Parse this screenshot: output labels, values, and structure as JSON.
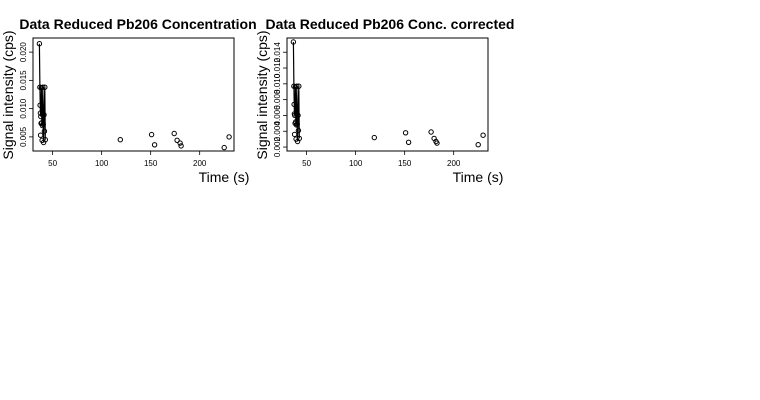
{
  "chart_data": [
    {
      "type": "scatter",
      "title": "Data Reduced Pb206 Concentration",
      "xlabel": "Time (s)",
      "ylabel": "Signal intensity (cps)",
      "xlim": [
        30,
        235
      ],
      "ylim": [
        0.0025,
        0.0225
      ],
      "x_ticks": [
        50,
        100,
        150,
        200
      ],
      "x_tick_labels": [
        "50",
        "100",
        "150",
        "200"
      ],
      "y_ticks": [
        0.005,
        0.01,
        0.015,
        0.02
      ],
      "y_tick_labels": [
        "0.005",
        "0.010",
        "0.015",
        "0.020"
      ],
      "series": [
        {
          "x": [
            36.5,
            37.0,
            37.2,
            37.5,
            37.8,
            38.0,
            38.3,
            38.6,
            39.0,
            39.3,
            39.6,
            40.0,
            40.4,
            40.8,
            41.2,
            41.6,
            42.0,
            42.5,
            119.0,
            151.0,
            154.0,
            174.0,
            177.0,
            180.0,
            181.0,
            225.0,
            230.0
          ],
          "y": [
            0.0215,
            0.0138,
            0.0106,
            0.0092,
            0.0053,
            0.0086,
            0.0074,
            0.0137,
            0.0075,
            0.0044,
            0.007,
            0.0138,
            0.0072,
            0.004,
            0.0089,
            0.006,
            0.0138,
            0.0045,
            0.0045,
            0.0054,
            0.0036,
            0.0056,
            0.0044,
            0.0039,
            0.0034,
            0.0031,
            0.005
          ],
          "line_x": [
            36.5,
            37.0,
            37.5,
            38.0,
            38.6,
            39.0,
            39.6,
            40.0,
            40.8,
            41.2,
            42.0,
            42.5
          ],
          "line_y": [
            0.0215,
            0.0138,
            0.0092,
            0.0086,
            0.0137,
            0.0075,
            0.007,
            0.0138,
            0.004,
            0.0089,
            0.0138,
            0.0045
          ]
        }
      ],
      "grid": false,
      "legend": "none"
    },
    {
      "type": "scatter",
      "title": "Data Reduced Pb206 Conc. corrected",
      "xlabel": "Time (s)",
      "ylabel": "Signal intensity (cps)",
      "xlim": [
        30,
        235
      ],
      "ylim": [
        0.0015,
        0.0158
      ],
      "x_ticks": [
        50,
        100,
        150,
        200
      ],
      "x_tick_labels": [
        "50",
        "100",
        "150",
        "200"
      ],
      "y_ticks": [
        0.002,
        0.004,
        0.006,
        0.008,
        0.01,
        0.012,
        0.014
      ],
      "y_tick_labels": [
        "0.002",
        "0.004",
        "0.006",
        "0.008",
        "0.010",
        "0.012",
        "0.014"
      ],
      "series": [
        {
          "x": [
            36.5,
            37.0,
            37.2,
            37.5,
            37.8,
            38.0,
            38.3,
            38.6,
            39.0,
            39.3,
            39.6,
            40.0,
            40.4,
            40.8,
            41.2,
            41.6,
            42.0,
            42.5,
            119.0,
            151.0,
            154.0,
            177.0,
            180.0,
            182.0,
            183.0,
            225.0,
            230.0
          ],
          "y": [
            0.0153,
            0.0097,
            0.0074,
            0.0062,
            0.0036,
            0.006,
            0.005,
            0.0096,
            0.0052,
            0.003,
            0.0048,
            0.0097,
            0.0049,
            0.0027,
            0.006,
            0.0041,
            0.0097,
            0.0031,
            0.0032,
            0.0038,
            0.0026,
            0.0039,
            0.0031,
            0.0027,
            0.0025,
            0.0023,
            0.0035
          ],
          "line_x": [
            36.5,
            37.0,
            37.5,
            38.0,
            38.6,
            39.0,
            39.6,
            40.0,
            40.8,
            41.2,
            42.0,
            42.5
          ],
          "line_y": [
            0.0153,
            0.0097,
            0.0062,
            0.006,
            0.0096,
            0.0052,
            0.0048,
            0.0097,
            0.0027,
            0.006,
            0.0097,
            0.0031
          ]
        }
      ],
      "grid": false,
      "legend": "none"
    }
  ]
}
